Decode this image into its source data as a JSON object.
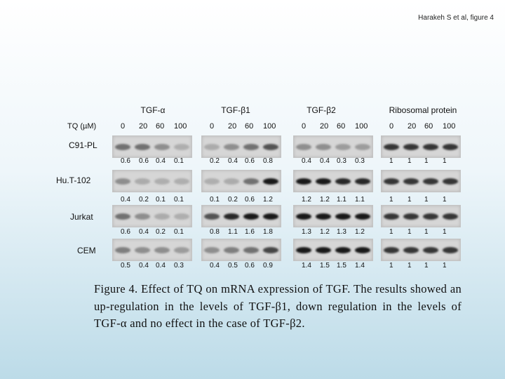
{
  "header_note": "Harakeh S et al, figure 4",
  "axis_label": "TQ (µM)",
  "columns": [
    {
      "title": "TGF-α",
      "concentrations": [
        "0",
        "20",
        "60",
        "100"
      ]
    },
    {
      "title": "TGF-β1",
      "concentrations": [
        "0",
        "20",
        "60",
        "100"
      ]
    },
    {
      "title": "TGF-β2",
      "concentrations": [
        "0",
        "20",
        "60",
        "100"
      ]
    },
    {
      "title": "Ribosomal protein",
      "concentrations": [
        "0",
        "20",
        "60",
        "100"
      ]
    }
  ],
  "cell_lines": [
    {
      "name": "C91-PL",
      "values": [
        [
          "0.6",
          "0.6",
          "0.4",
          "0.1"
        ],
        [
          "0.2",
          "0.4",
          "0.6",
          "0.8"
        ],
        [
          "0.4",
          "0.4",
          "0.3",
          "0.3"
        ],
        [
          "1",
          "1",
          "1",
          "1"
        ]
      ]
    },
    {
      "name": "Hu.T-102",
      "values": [
        [
          "0.4",
          "0.2",
          "0.1",
          "0.1"
        ],
        [
          "0.1",
          "0.2",
          "0.6",
          "1.2"
        ],
        [
          "1.2",
          "1.2",
          "1.1",
          "1.1"
        ],
        [
          "1",
          "1",
          "1",
          "1"
        ]
      ]
    },
    {
      "name": "Jurkat",
      "values": [
        [
          "0.6",
          "0.4",
          "0.2",
          "0.1"
        ],
        [
          "0.8",
          "1.1",
          "1.6",
          "1.8"
        ],
        [
          "1.3",
          "1.2",
          "1.3",
          "1.2"
        ],
        [
          "1",
          "1",
          "1",
          "1"
        ]
      ]
    },
    {
      "name": "CEM",
      "values": [
        [
          "0.5",
          "0.4",
          "0.4",
          "0.3"
        ],
        [
          "0.4",
          "0.5",
          "0.6",
          "0.9"
        ],
        [
          "1.4",
          "1.5",
          "1.5",
          "1.4"
        ],
        [
          "1",
          "1",
          "1",
          "1"
        ]
      ]
    }
  ],
  "caption": "Figure 4. Effect of TQ on mRNA expression of  TGF. The results showed an up-regulation in the levels of TGF-β1, down regulation in the levels of TGF-α and no effect in the case of TGF-β2."
}
